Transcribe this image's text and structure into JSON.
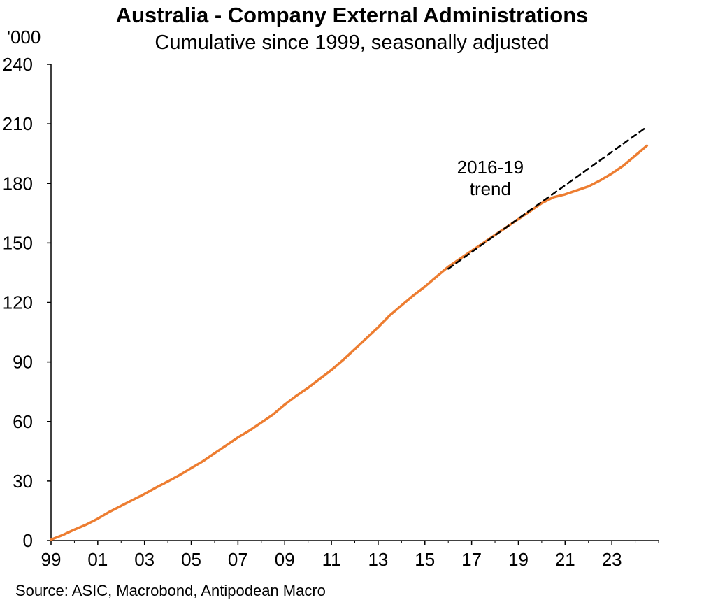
{
  "chart_data": {
    "type": "line",
    "title": "Australia - Company External Administrations",
    "subtitle": "Cumulative since 1999, seasonally adjusted",
    "unit_label": "'000",
    "source": "Source: ASIC, Macrobond, Antipodean Macro",
    "xlim": [
      1999,
      2025.0
    ],
    "ylim": [
      0,
      240
    ],
    "y_ticks": [
      0,
      30,
      60,
      90,
      120,
      150,
      180,
      210,
      240
    ],
    "x_ticks": [
      {
        "value": 1999,
        "label": "99"
      },
      {
        "value": 2001,
        "label": "01"
      },
      {
        "value": 2003,
        "label": "03"
      },
      {
        "value": 2005,
        "label": "05"
      },
      {
        "value": 2007,
        "label": "07"
      },
      {
        "value": 2009,
        "label": "09"
      },
      {
        "value": 2011,
        "label": "11"
      },
      {
        "value": 2013,
        "label": "13"
      },
      {
        "value": 2015,
        "label": "15"
      },
      {
        "value": 2017,
        "label": "17"
      },
      {
        "value": 2019,
        "label": "19"
      },
      {
        "value": 2021,
        "label": "21"
      },
      {
        "value": 2023,
        "label": "23"
      }
    ],
    "grid": false,
    "series": [
      {
        "name": "",
        "color": "#ED7D31",
        "style": "solid",
        "points": [
          [
            1999.0,
            0.5
          ],
          [
            1999.5,
            2.8
          ],
          [
            2000.0,
            5.5
          ],
          [
            2000.5,
            8.0
          ],
          [
            2001.0,
            11.0
          ],
          [
            2001.5,
            14.5
          ],
          [
            2002.0,
            17.5
          ],
          [
            2002.5,
            20.5
          ],
          [
            2003.0,
            23.5
          ],
          [
            2003.5,
            26.8
          ],
          [
            2004.0,
            29.8
          ],
          [
            2004.5,
            33.0
          ],
          [
            2005.0,
            36.5
          ],
          [
            2005.5,
            40.0
          ],
          [
            2006.0,
            44.0
          ],
          [
            2006.5,
            48.0
          ],
          [
            2007.0,
            52.0
          ],
          [
            2007.5,
            55.5
          ],
          [
            2008.0,
            59.5
          ],
          [
            2008.5,
            63.5
          ],
          [
            2009.0,
            68.5
          ],
          [
            2009.5,
            73.0
          ],
          [
            2010.0,
            77.0
          ],
          [
            2010.5,
            81.5
          ],
          [
            2011.0,
            86.0
          ],
          [
            2011.5,
            91.0
          ],
          [
            2012.0,
            96.5
          ],
          [
            2012.5,
            102.0
          ],
          [
            2013.0,
            107.5
          ],
          [
            2013.5,
            113.5
          ],
          [
            2014.0,
            118.5
          ],
          [
            2014.5,
            123.5
          ],
          [
            2015.0,
            128.0
          ],
          [
            2015.5,
            133.0
          ],
          [
            2016.0,
            138.0
          ],
          [
            2016.5,
            142.0
          ],
          [
            2017.0,
            146.0
          ],
          [
            2017.5,
            150.0
          ],
          [
            2018.0,
            154.0
          ],
          [
            2018.5,
            158.0
          ],
          [
            2019.0,
            162.0
          ],
          [
            2019.5,
            166.0
          ],
          [
            2020.0,
            170.0
          ],
          [
            2020.5,
            173.0
          ],
          [
            2021.0,
            174.5
          ],
          [
            2021.5,
            176.5
          ],
          [
            2022.0,
            178.5
          ],
          [
            2022.5,
            181.5
          ],
          [
            2023.0,
            185.0
          ],
          [
            2023.5,
            189.0
          ],
          [
            2024.0,
            194.0
          ],
          [
            2024.5,
            199.0
          ]
        ]
      },
      {
        "name": "2016-19 trend",
        "color": "#000000",
        "style": "dashed",
        "points": [
          [
            2016.0,
            137.0
          ],
          [
            2024.5,
            208.5
          ]
        ]
      }
    ],
    "annotations": [
      {
        "text_lines": [
          "2016-19",
          "trend"
        ],
        "x": 2017.8,
        "y": 185
      }
    ]
  }
}
